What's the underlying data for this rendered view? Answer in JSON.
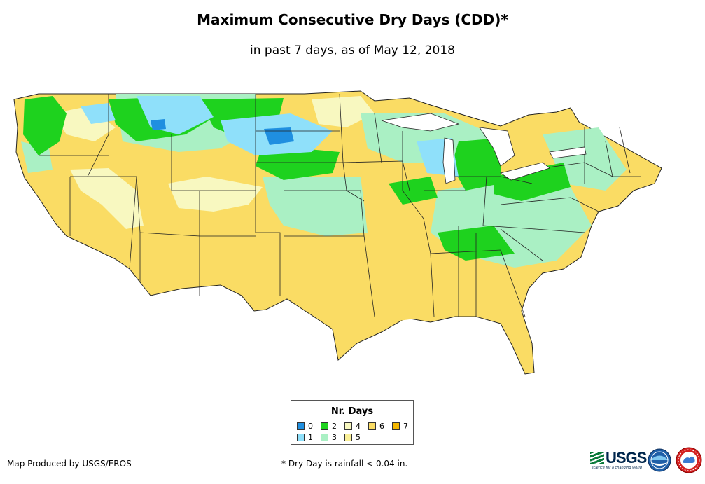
{
  "title": "Maximum Consecutive Dry Days (CDD)*",
  "subtitle": "in past 7 days, as of May 12, 2018",
  "legend": {
    "title": "Nr. Days",
    "items": [
      {
        "label": "0",
        "color": "#1f8fe0"
      },
      {
        "label": "1",
        "color": "#8fe0fa"
      },
      {
        "label": "2",
        "color": "#1ed21e"
      },
      {
        "label": "3",
        "color": "#aaf0c4"
      },
      {
        "label": "4",
        "color": "#f8f8c0"
      },
      {
        "label": "5",
        "color": "#faf098"
      },
      {
        "label": "6",
        "color": "#fadc64"
      },
      {
        "label": "7",
        "color": "#f5b800"
      }
    ]
  },
  "credit": "Map Produced by USGS/EROS",
  "footnote": "* Dry Day is rainfall < 0.04 in.",
  "logos": {
    "usgs": "USGS",
    "usgs_tagline": "science for a changing world"
  },
  "map": {
    "region": "Contiguous United States",
    "colors": {
      "ocean": "#ffffff",
      "state_border": "#222222"
    }
  }
}
